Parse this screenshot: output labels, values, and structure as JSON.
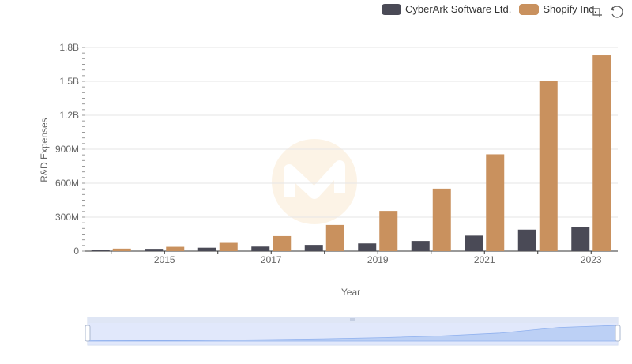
{
  "chart_data": {
    "type": "bar",
    "xlabel": "Year",
    "ylabel": "R&D Expenses",
    "x": [
      2014,
      2015,
      2016,
      2017,
      2018,
      2019,
      2020,
      2021,
      2022,
      2023
    ],
    "x_tick_labels": [
      "2015",
      "2017",
      "2019",
      "2021",
      "2023"
    ],
    "y_tick_labels": [
      "0",
      "300M",
      "600M",
      "900M",
      "1.2B",
      "1.5B",
      "1.8B"
    ],
    "ylim": [
      0,
      1800000000
    ],
    "grid": true,
    "legend_position": "top-right",
    "series": [
      {
        "name": "CyberArk Software Ltd.",
        "color": "#4a4a56",
        "values": [
          12000000,
          20000000,
          30000000,
          40000000,
          55000000,
          68000000,
          90000000,
          137000000,
          190000000,
          210000000
        ]
      },
      {
        "name": "Shopify Inc.",
        "color": "#c9915e",
        "values": [
          22000000,
          38000000,
          73000000,
          133000000,
          231000000,
          355000000,
          552000000,
          855000000,
          1500000000,
          1730000000
        ]
      }
    ]
  },
  "toolbar": {
    "icons": [
      "zoom-icon",
      "restore-icon"
    ]
  }
}
